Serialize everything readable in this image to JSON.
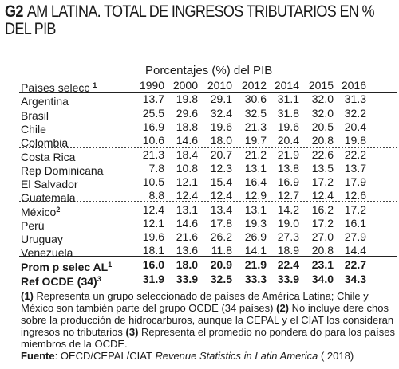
{
  "title": {
    "code": "G2",
    "line1": "AM LATINA. TOTAL DE INGRESOS TRIBUTARIOS  EN %",
    "line2": "DEL PIB"
  },
  "subtitle": "Porcentajes (%) del PIB",
  "header": {
    "label": "Países selecc",
    "label_note": "1",
    "years": [
      "1990",
      "2000",
      "2010",
      "2012",
      "2014",
      "2015",
      "2016"
    ]
  },
  "rows": [
    {
      "name": "Argentina",
      "note": "",
      "values": [
        "13.7",
        "19.8",
        "29.1",
        "30.6",
        "31.1",
        "32.0",
        "31.3"
      ]
    },
    {
      "name": "Brasil",
      "note": "",
      "values": [
        "25.5",
        "29.6",
        "32.4",
        "32.5",
        "31.8",
        "32.0",
        "32.2"
      ]
    },
    {
      "name": "Chile",
      "note": "",
      "values": [
        "16.9",
        "18.8",
        "19.6",
        "21.3",
        "19.6",
        "20.5",
        "20.4"
      ]
    },
    {
      "name": "Colombia",
      "note": "",
      "values": [
        "10.6",
        "14.6",
        "18.0",
        "19.7",
        "20.4",
        "20.8",
        "19.8"
      ]
    },
    {
      "name": "Costa Rica",
      "note": "",
      "values": [
        "21.3",
        "18.4",
        "20.7",
        "21.2",
        "21.9",
        "22.6",
        "22.2"
      ]
    },
    {
      "name": "Rep Dominicana",
      "note": "",
      "values": [
        "7.8",
        "10.8",
        "12.3",
        "13.1",
        "13.8",
        "13.5",
        "13.7"
      ]
    },
    {
      "name": "El Salvador",
      "note": "",
      "values": [
        "10.5",
        "12.1",
        "15.4",
        "16.4",
        "16.9",
        "17.2",
        "17.9"
      ]
    },
    {
      "name": "Guatemala",
      "note": "",
      "values": [
        "8.8",
        "12.4",
        "12.4",
        "12.9",
        "12.7",
        "12.4",
        "12.6"
      ]
    },
    {
      "name": "México",
      "note": "2",
      "values": [
        "12.4",
        "13.1",
        "13.4",
        "13.1",
        "14.2",
        "16.2",
        "17.2"
      ]
    },
    {
      "name": "Perú",
      "note": "",
      "values": [
        "12.1",
        "14.6",
        "17.8",
        "19.3",
        "19.0",
        "17.2",
        "16.1"
      ]
    },
    {
      "name": "Uruguay",
      "note": "",
      "values": [
        "19.6",
        "21.6",
        "26.2",
        "26.9",
        "27.3",
        "27.0",
        "27.9"
      ]
    },
    {
      "name": "Venezuela",
      "note": "",
      "values": [
        "18.1",
        "13.6",
        "11.8",
        "14.1",
        "18.9",
        "20.8",
        "14.4"
      ]
    }
  ],
  "summary": [
    {
      "name": "Prom p selec AL",
      "note": "1",
      "values": [
        "16.0",
        "18.0",
        "20.9",
        "21.9",
        "22.4",
        "23.1",
        "22.7"
      ]
    },
    {
      "name": "Ref OCDE (34)",
      "note": "3",
      "values": [
        "31.9",
        "33.9",
        "32.5",
        "33.3",
        "33.9",
        "34.0",
        "34.3"
      ]
    }
  ],
  "notes": {
    "n1_num": "(1)",
    "n1_text": " Representa un grupo seleccionado de países de América Latina; Chile y México son también parte del grupo OCDE (34 países) ",
    "n2_num": "(2)",
    "n2_text": " No incluye dere chos sobre la producción de hidrocarburos, aunque la CEPAL y el CIAT los consideran ingresos no tributarios  ",
    "n3_num": "(3)",
    "n3_text": " Representa el promedio no pondera do para los países miembros de la OCDE."
  },
  "source": {
    "label": "Fuente",
    "prefix": ": OECD/CEPAL/CIAT ",
    "publication": "Revenue Statistics in Latin America",
    "suffix": " ( 2018)"
  }
}
